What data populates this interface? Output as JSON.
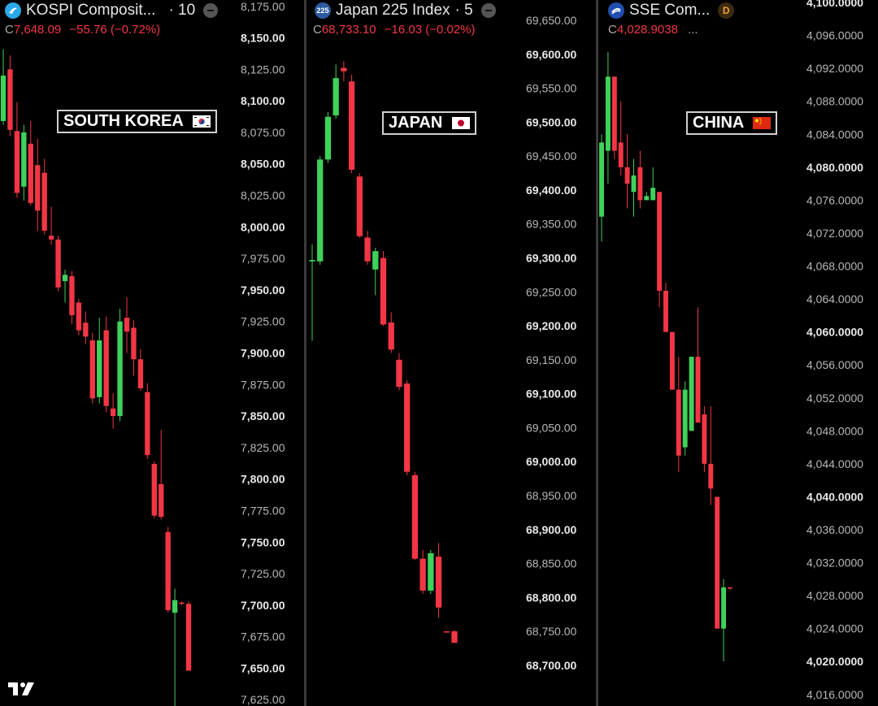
{
  "chart_data": [
    {
      "type": "candlestick",
      "title": "KOSPI Composit...",
      "interval": "· 10",
      "close_prefix": "C",
      "close": "7,648.09",
      "change": "−55.76",
      "change_pct": "(−0.72%)",
      "label": "SOUTH KOREA",
      "ylim": [
        7620,
        8180
      ],
      "ticks": [
        {
          "v": 8175,
          "t": "8,175.00",
          "bold": false
        },
        {
          "v": 8150,
          "t": "8,150.00",
          "bold": true
        },
        {
          "v": 8125,
          "t": "8,125.00",
          "bold": false
        },
        {
          "v": 8100,
          "t": "8,100.00",
          "bold": true
        },
        {
          "v": 8075,
          "t": "8,075.00",
          "bold": false
        },
        {
          "v": 8050,
          "t": "8,050.00",
          "bold": true
        },
        {
          "v": 8025,
          "t": "8,025.00",
          "bold": false
        },
        {
          "v": 8000,
          "t": "8,000.00",
          "bold": true
        },
        {
          "v": 7975,
          "t": "7,975.00",
          "bold": false
        },
        {
          "v": 7950,
          "t": "7,950.00",
          "bold": true
        },
        {
          "v": 7925,
          "t": "7,925.00",
          "bold": false
        },
        {
          "v": 7900,
          "t": "7,900.00",
          "bold": true
        },
        {
          "v": 7875,
          "t": "7,875.00",
          "bold": false
        },
        {
          "v": 7850,
          "t": "7,850.00",
          "bold": true
        },
        {
          "v": 7825,
          "t": "7,825.00",
          "bold": false
        },
        {
          "v": 7800,
          "t": "7,800.00",
          "bold": true
        },
        {
          "v": 7775,
          "t": "7,775.00",
          "bold": false
        },
        {
          "v": 7750,
          "t": "7,750.00",
          "bold": true
        },
        {
          "v": 7725,
          "t": "7,725.00",
          "bold": false
        },
        {
          "v": 7700,
          "t": "7,700.00",
          "bold": true
        },
        {
          "v": 7675,
          "t": "7,675.00",
          "bold": false
        },
        {
          "v": 7650,
          "t": "7,650.00",
          "bold": true
        },
        {
          "v": 7625,
          "t": "7,625.00",
          "bold": false
        }
      ],
      "candles": [
        {
          "o": 8084,
          "h": 8141,
          "l": 8081,
          "c": 8120
        },
        {
          "o": 8125,
          "h": 8136,
          "l": 8072,
          "c": 8077
        },
        {
          "o": 8076,
          "h": 8099,
          "l": 8023,
          "c": 8027
        },
        {
          "o": 8032,
          "h": 8081,
          "l": 8021,
          "c": 8075
        },
        {
          "o": 8066,
          "h": 8084,
          "l": 8017,
          "c": 8019
        },
        {
          "o": 8049,
          "h": 8070,
          "l": 7997,
          "c": 8013
        },
        {
          "o": 8043,
          "h": 8054,
          "l": 7994,
          "c": 7997
        },
        {
          "o": 7993,
          "h": 8016,
          "l": 7986,
          "c": 7990
        },
        {
          "o": 7990,
          "h": 7993,
          "l": 7949,
          "c": 7952
        },
        {
          "o": 7957,
          "h": 7966,
          "l": 7940,
          "c": 7962
        },
        {
          "o": 7961,
          "h": 7965,
          "l": 7923,
          "c": 7930
        },
        {
          "o": 7940,
          "h": 7943,
          "l": 7914,
          "c": 7918
        },
        {
          "o": 7924,
          "h": 7933,
          "l": 7907,
          "c": 7913
        },
        {
          "o": 7910,
          "h": 7916,
          "l": 7860,
          "c": 7864
        },
        {
          "o": 7865,
          "h": 7928,
          "l": 7860,
          "c": 7910
        },
        {
          "o": 7918,
          "h": 7929,
          "l": 7853,
          "c": 7858
        },
        {
          "o": 7856,
          "h": 7868,
          "l": 7840,
          "c": 7850
        },
        {
          "o": 7850,
          "h": 7935,
          "l": 7846,
          "c": 7925
        },
        {
          "o": 7928,
          "h": 7944,
          "l": 7900,
          "c": 7917
        },
        {
          "o": 7920,
          "h": 7926,
          "l": 7882,
          "c": 7895
        },
        {
          "o": 7895,
          "h": 7903,
          "l": 7870,
          "c": 7872
        },
        {
          "o": 7869,
          "h": 7876,
          "l": 7816,
          "c": 7819
        },
        {
          "o": 7812,
          "h": 7814,
          "l": 7769,
          "c": 7771
        },
        {
          "o": 7796,
          "h": 7839,
          "l": 7768,
          "c": 7770
        },
        {
          "o": 7758,
          "h": 7762,
          "l": 7694,
          "c": 7696
        },
        {
          "o": 7694,
          "h": 7713,
          "l": 7605,
          "c": 7704
        },
        {
          "o": 7702,
          "h": 7703,
          "l": 7700,
          "c": 7701
        },
        {
          "o": 7701,
          "h": 7703,
          "l": 7648,
          "c": 7648
        }
      ]
    },
    {
      "type": "candlestick",
      "title": "Japan 225 Index",
      "interval": "· 5",
      "logo_text": "225",
      "close_prefix": "C",
      "close": "68,733.10",
      "change": "−16.03",
      "change_pct": "(−0.02%)",
      "label": "JAPAN",
      "ylim": [
        68640,
        69680
      ],
      "ticks": [
        {
          "v": 69650,
          "t": "69,650.00",
          "bold": false
        },
        {
          "v": 69600,
          "t": "69,600.00",
          "bold": true
        },
        {
          "v": 69550,
          "t": "69,550.00",
          "bold": false
        },
        {
          "v": 69500,
          "t": "69,500.00",
          "bold": true
        },
        {
          "v": 69450,
          "t": "69,450.00",
          "bold": false
        },
        {
          "v": 69400,
          "t": "69,400.00",
          "bold": true
        },
        {
          "v": 69350,
          "t": "69,350.00",
          "bold": false
        },
        {
          "v": 69300,
          "t": "69,300.00",
          "bold": true
        },
        {
          "v": 69250,
          "t": "69,250.00",
          "bold": false
        },
        {
          "v": 69200,
          "t": "69,200.00",
          "bold": true
        },
        {
          "v": 69150,
          "t": "69,150.00",
          "bold": false
        },
        {
          "v": 69100,
          "t": "69,100.00",
          "bold": true
        },
        {
          "v": 69050,
          "t": "69,050.00",
          "bold": false
        },
        {
          "v": 69000,
          "t": "69,000.00",
          "bold": true
        },
        {
          "v": 68950,
          "t": "68,950.00",
          "bold": false
        },
        {
          "v": 68900,
          "t": "68,900.00",
          "bold": true
        },
        {
          "v": 68850,
          "t": "68,850.00",
          "bold": false
        },
        {
          "v": 68800,
          "t": "68,800.00",
          "bold": true
        },
        {
          "v": 68750,
          "t": "68,750.00",
          "bold": false
        },
        {
          "v": 68700,
          "t": "68,700.00",
          "bold": true
        }
      ],
      "candles": [
        {
          "o": 69295,
          "h": 69320,
          "l": 69178,
          "c": 69297
        },
        {
          "o": 69295,
          "h": 69450,
          "l": 69290,
          "c": 69445
        },
        {
          "o": 69445,
          "h": 69515,
          "l": 69440,
          "c": 69508
        },
        {
          "o": 69510,
          "h": 69585,
          "l": 69505,
          "c": 69565
        },
        {
          "o": 69580,
          "h": 69590,
          "l": 69560,
          "c": 69575
        },
        {
          "o": 69560,
          "h": 69570,
          "l": 69425,
          "c": 69430
        },
        {
          "o": 69420,
          "h": 69425,
          "l": 69330,
          "c": 69332
        },
        {
          "o": 69330,
          "h": 69340,
          "l": 69290,
          "c": 69295
        },
        {
          "o": 69283,
          "h": 69315,
          "l": 69245,
          "c": 69310
        },
        {
          "o": 69300,
          "h": 69310,
          "l": 69200,
          "c": 69202
        },
        {
          "o": 69205,
          "h": 69220,
          "l": 69160,
          "c": 69165
        },
        {
          "o": 69150,
          "h": 69160,
          "l": 69105,
          "c": 69110
        },
        {
          "o": 69115,
          "h": 69120,
          "l": 68980,
          "c": 68985
        },
        {
          "o": 68980,
          "h": 68985,
          "l": 68855,
          "c": 68857
        },
        {
          "o": 68857,
          "h": 68870,
          "l": 68805,
          "c": 68810
        },
        {
          "o": 68810,
          "h": 68870,
          "l": 68805,
          "c": 68865
        },
        {
          "o": 68860,
          "h": 68880,
          "l": 68770,
          "c": 68785
        },
        {
          "o": 68750,
          "h": 68750,
          "l": 68748,
          "c": 68749
        },
        {
          "o": 68750,
          "h": 68752,
          "l": 68733,
          "c": 68733
        }
      ]
    },
    {
      "type": "candlestick",
      "title": "SSE Com...",
      "close_prefix": "C",
      "close": "4,028.9038",
      "trailing": "...",
      "badge": "D",
      "label": "CHINA",
      "ylim": [
        4014.6,
        4100.3
      ],
      "ticks": [
        {
          "v": 4100,
          "t": "4,100.0000",
          "bold": true
        },
        {
          "v": 4096,
          "t": "4,096.0000",
          "bold": false
        },
        {
          "v": 4092,
          "t": "4,092.0000",
          "bold": false
        },
        {
          "v": 4088,
          "t": "4,088.0000",
          "bold": false
        },
        {
          "v": 4084,
          "t": "4,084.0000",
          "bold": false
        },
        {
          "v": 4080,
          "t": "4,080.0000",
          "bold": true
        },
        {
          "v": 4076,
          "t": "4,076.0000",
          "bold": false
        },
        {
          "v": 4072,
          "t": "4,072.0000",
          "bold": false
        },
        {
          "v": 4068,
          "t": "4,068.0000",
          "bold": false
        },
        {
          "v": 4064,
          "t": "4,064.0000",
          "bold": false
        },
        {
          "v": 4060,
          "t": "4,060.0000",
          "bold": true
        },
        {
          "v": 4056,
          "t": "4,056.0000",
          "bold": false
        },
        {
          "v": 4052,
          "t": "4,052.0000",
          "bold": false
        },
        {
          "v": 4048,
          "t": "4,048.0000",
          "bold": false
        },
        {
          "v": 4044,
          "t": "4,044.0000",
          "bold": false
        },
        {
          "v": 4040,
          "t": "4,040.0000",
          "bold": true
        },
        {
          "v": 4036,
          "t": "4,036.0000",
          "bold": false
        },
        {
          "v": 4032,
          "t": "4,032.0000",
          "bold": false
        },
        {
          "v": 4028,
          "t": "4,028.0000",
          "bold": false
        },
        {
          "v": 4024,
          "t": "4,024.0000",
          "bold": false
        },
        {
          "v": 4020,
          "t": "4,020.0000",
          "bold": true
        },
        {
          "v": 4016,
          "t": "4,016.0000",
          "bold": false
        }
      ],
      "candles": [
        {
          "o": 4074,
          "h": 4084,
          "l": 4071,
          "c": 4083
        },
        {
          "o": 4082,
          "h": 4094,
          "l": 4078,
          "c": 4091
        },
        {
          "o": 4091,
          "h": 4091,
          "l": 4081,
          "c": 4082
        },
        {
          "o": 4083,
          "h": 4088,
          "l": 4079,
          "c": 4080
        },
        {
          "o": 4080,
          "h": 4084,
          "l": 4075,
          "c": 4078
        },
        {
          "o": 4077,
          "h": 4081,
          "l": 4074,
          "c": 4079
        },
        {
          "o": 4080,
          "h": 4082,
          "l": 4075,
          "c": 4076
        },
        {
          "o": 4076,
          "h": 4077,
          "l": 4076,
          "c": 4076.5
        },
        {
          "o": 4076,
          "h": 4080,
          "l": 4076,
          "c": 4077.5
        },
        {
          "o": 4077,
          "h": 4077,
          "l": 4063,
          "c": 4065
        },
        {
          "o": 4065,
          "h": 4066,
          "l": 4060,
          "c": 4060
        },
        {
          "o": 4060,
          "h": 4060,
          "l": 4053,
          "c": 4053
        },
        {
          "o": 4053,
          "h": 4057,
          "l": 4043,
          "c": 4045
        },
        {
          "o": 4046,
          "h": 4054,
          "l": 4045,
          "c": 4053
        },
        {
          "o": 4048,
          "h": 4057,
          "l": 4048,
          "c": 4057
        },
        {
          "o": 4057,
          "h": 4063,
          "l": 4049,
          "c": 4049
        },
        {
          "o": 4050,
          "h": 4051,
          "l": 4043,
          "c": 4044
        },
        {
          "o": 4044,
          "h": 4051,
          "l": 4039,
          "c": 4041
        },
        {
          "o": 4040,
          "h": 4040,
          "l": 4024,
          "c": 4024
        },
        {
          "o": 4024,
          "h": 4030,
          "l": 4020,
          "c": 4029
        },
        {
          "o": 4029,
          "h": 4029,
          "l": 4028.7,
          "c": 4028.9
        }
      ]
    }
  ],
  "colors": {
    "up": "#3fd25a",
    "down": "#f23645",
    "bg": "#000000",
    "separator": "#3a3a3a"
  }
}
